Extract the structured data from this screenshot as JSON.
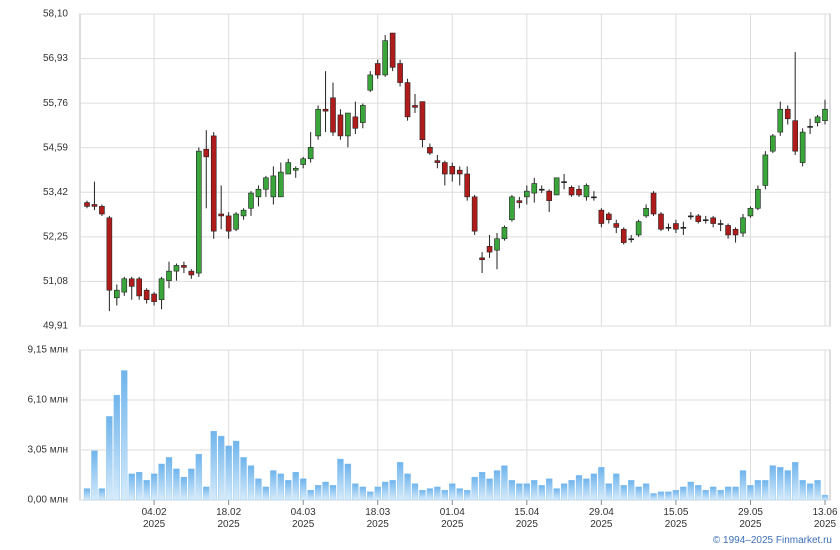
{
  "chart_data": {
    "type": "candlestick",
    "categories": [
      null,
      null,
      null,
      null,
      null,
      null,
      null,
      null,
      null,
      "04.02\n2025",
      null,
      null,
      null,
      null,
      null,
      null,
      null,
      null,
      null,
      "18.02\n2025",
      null,
      null,
      null,
      null,
      null,
      null,
      null,
      null,
      null,
      "04.03\n2025",
      null,
      null,
      null,
      null,
      null,
      null,
      null,
      null,
      null,
      "18.03\n2025",
      null,
      null,
      null,
      null,
      null,
      null,
      null,
      null,
      null,
      "01.04\n2025",
      null,
      null,
      null,
      null,
      null,
      null,
      null,
      null,
      null,
      "15.04\n2025",
      null,
      null,
      null,
      null,
      null,
      null,
      null,
      null,
      null,
      "29.04\n2025",
      null,
      null,
      null,
      null,
      null,
      null,
      null,
      null,
      null,
      "15.05\n2025",
      null,
      null,
      null,
      null,
      null,
      null,
      null,
      null,
      null,
      "29.05\n2025",
      null,
      null,
      null,
      null,
      null,
      null,
      null,
      null,
      null,
      "13.06\n2025"
    ],
    "open": [
      53.15,
      53.1,
      53.05,
      52.75,
      50.65,
      50.8,
      51.15,
      51.15,
      50.85,
      50.75,
      50.6,
      51.1,
      51.35,
      51.5,
      51.35,
      51.3,
      54.55,
      54.9,
      52.85,
      52.8,
      52.45,
      52.8,
      53.0,
      53.3,
      53.5,
      53.3,
      53.3,
      53.9,
      54.0,
      54.15,
      54.3,
      54.9,
      55.6,
      55.9,
      55.45,
      54.9,
      55.4,
      55.25,
      56.1,
      56.8,
      56.5,
      57.6,
      56.8,
      56.3,
      55.7,
      55.8,
      54.6,
      54.25,
      54.2,
      54.1,
      54.0,
      53.9,
      53.3,
      51.7,
      52.0,
      51.9,
      52.2,
      52.7,
      53.2,
      53.3,
      53.4,
      53.5,
      53.45,
      53.35,
      53.7,
      53.55,
      53.5,
      53.3,
      53.3,
      52.95,
      52.85,
      52.6,
      52.45,
      52.2,
      52.3,
      52.8,
      53.4,
      52.85,
      52.5,
      52.6,
      52.5,
      52.8,
      52.8,
      52.7,
      52.75,
      52.6,
      52.55,
      52.45,
      52.35,
      52.8,
      53.0,
      53.6,
      54.5,
      55.0,
      55.6,
      55.3,
      54.2,
      55.15,
      55.25,
      55.3
    ],
    "high": [
      53.2,
      53.7,
      53.1,
      52.8,
      51.0,
      51.2,
      51.2,
      51.2,
      50.9,
      50.8,
      51.2,
      51.6,
      51.55,
      51.6,
      51.4,
      54.6,
      55.05,
      55.0,
      53.6,
      52.9,
      52.9,
      53.0,
      53.45,
      53.6,
      53.85,
      54.1,
      54.2,
      54.3,
      54.1,
      54.35,
      55.0,
      55.7,
      56.6,
      56.3,
      55.6,
      55.5,
      55.8,
      55.75,
      56.6,
      56.9,
      57.55,
      57.6,
      56.9,
      56.4,
      56.0,
      55.8,
      54.7,
      54.4,
      54.25,
      54.2,
      54.1,
      54.1,
      53.35,
      51.85,
      52.3,
      52.35,
      52.55,
      53.35,
      53.3,
      53.6,
      53.8,
      53.6,
      53.5,
      53.8,
      53.9,
      53.6,
      53.6,
      53.65,
      53.45,
      53.0,
      52.9,
      52.7,
      52.5,
      52.3,
      52.7,
      53.1,
      53.45,
      52.9,
      52.6,
      52.7,
      52.65,
      52.9,
      52.85,
      52.8,
      52.8,
      52.7,
      52.6,
      52.5,
      52.85,
      53.05,
      53.6,
      54.5,
      54.95,
      55.8,
      55.7,
      57.1,
      55.1,
      55.35,
      55.45,
      55.85
    ],
    "low": [
      53.0,
      52.95,
      52.8,
      50.3,
      50.45,
      50.7,
      50.6,
      50.6,
      50.5,
      50.45,
      50.35,
      50.9,
      51.1,
      51.3,
      51.15,
      51.2,
      53.0,
      52.2,
      52.45,
      52.2,
      52.4,
      52.7,
      52.8,
      53.05,
      53.3,
      53.1,
      53.3,
      53.9,
      53.8,
      54.05,
      54.2,
      54.8,
      55.0,
      54.9,
      54.8,
      54.6,
      54.95,
      55.1,
      56.05,
      56.4,
      56.45,
      56.6,
      56.2,
      55.3,
      55.5,
      54.6,
      54.4,
      54.05,
      53.6,
      53.7,
      53.6,
      53.2,
      52.3,
      51.3,
      51.7,
      51.4,
      52.15,
      52.65,
      53.0,
      53.1,
      53.15,
      53.4,
      52.9,
      53.35,
      53.5,
      53.3,
      53.3,
      53.2,
      53.2,
      52.5,
      52.6,
      52.35,
      52.05,
      52.1,
      52.25,
      52.75,
      52.8,
      52.4,
      52.4,
      52.35,
      52.3,
      52.7,
      52.6,
      52.6,
      52.5,
      52.4,
      52.2,
      52.1,
      52.25,
      52.75,
      52.95,
      53.5,
      54.45,
      54.9,
      55.2,
      54.4,
      54.1,
      54.95,
      55.15,
      55.2
    ],
    "close": [
      53.05,
      53.05,
      52.85,
      50.85,
      50.85,
      51.15,
      50.95,
      50.7,
      50.6,
      50.55,
      51.15,
      51.35,
      51.5,
      51.45,
      51.25,
      54.5,
      54.35,
      52.4,
      52.8,
      52.4,
      52.85,
      52.95,
      53.4,
      53.5,
      53.8,
      53.85,
      53.95,
      54.2,
      54.05,
      54.3,
      54.6,
      55.6,
      55.55,
      55.0,
      54.9,
      55.5,
      55.1,
      55.7,
      56.5,
      56.5,
      57.4,
      56.7,
      56.3,
      55.4,
      55.65,
      54.8,
      54.45,
      54.2,
      53.9,
      53.9,
      53.9,
      53.3,
      52.4,
      51.65,
      51.85,
      52.2,
      52.5,
      53.3,
      53.15,
      53.45,
      53.65,
      53.5,
      53.2,
      53.8,
      53.7,
      53.35,
      53.35,
      53.6,
      53.3,
      52.6,
      52.7,
      52.5,
      52.1,
      52.2,
      52.65,
      53.0,
      52.85,
      52.45,
      52.5,
      52.45,
      52.5,
      52.8,
      52.65,
      52.7,
      52.6,
      52.6,
      52.3,
      52.3,
      52.75,
      53.0,
      53.5,
      54.4,
      54.9,
      55.6,
      55.35,
      54.5,
      55.0,
      55.15,
      55.4,
      55.6
    ],
    "up_color": "#3aa53a",
    "down_color": "#b01c1c",
    "ylim": [
      49.91,
      58.1
    ],
    "yticks": [
      {
        "value": 49.91,
        "label": "49,91"
      },
      {
        "value": 51.08,
        "label": "51,08"
      },
      {
        "value": 52.25,
        "label": "52,25"
      },
      {
        "value": 53.42,
        "label": "53,42"
      },
      {
        "value": 54.59,
        "label": "54,59"
      },
      {
        "value": 55.76,
        "label": "55,76"
      },
      {
        "value": 56.93,
        "label": "56,93"
      },
      {
        "value": 58.1,
        "label": "58,10"
      }
    ],
    "grid": true,
    "volume": {
      "type": "bar",
      "color": "#7dbdee",
      "values": [
        0.7,
        3.0,
        0.7,
        5.1,
        6.4,
        7.9,
        1.6,
        1.7,
        1.2,
        1.6,
        2.2,
        2.6,
        1.9,
        1.4,
        1.9,
        2.8,
        0.8,
        4.2,
        3.9,
        3.3,
        3.6,
        2.6,
        2.1,
        1.3,
        0.8,
        1.8,
        1.6,
        1.2,
        1.7,
        1.3,
        0.6,
        0.9,
        1.1,
        0.9,
        2.5,
        2.2,
        1.0,
        0.8,
        0.5,
        0.8,
        1.1,
        1.2,
        2.3,
        1.6,
        1.0,
        0.6,
        0.7,
        0.8,
        0.6,
        1.0,
        0.7,
        0.6,
        1.4,
        1.7,
        1.3,
        1.8,
        2.1,
        1.2,
        1.0,
        1.0,
        1.2,
        0.9,
        1.3,
        0.7,
        1.0,
        1.2,
        1.5,
        1.3,
        1.6,
        2.0,
        1.0,
        1.6,
        0.9,
        1.2,
        0.8,
        1.0,
        0.4,
        0.5,
        0.5,
        0.6,
        0.8,
        1.1,
        0.9,
        0.6,
        0.8,
        0.6,
        0.8,
        0.8,
        1.8,
        0.9,
        1.2,
        1.2,
        2.1,
        2.0,
        1.8,
        2.3,
        1.2,
        1.0,
        1.2,
        0.3
      ],
      "ylim": [
        0,
        9.15
      ],
      "yticks": [
        {
          "value": 0,
          "label": "0,00 млн"
        },
        {
          "value": 3.05,
          "label": "3,05 млн"
        },
        {
          "value": 6.1,
          "label": "6,10 млн"
        },
        {
          "value": 9.15,
          "label": "9,15 млн"
        }
      ]
    },
    "footer": "© 1994–2025 Finmarket.ru"
  }
}
